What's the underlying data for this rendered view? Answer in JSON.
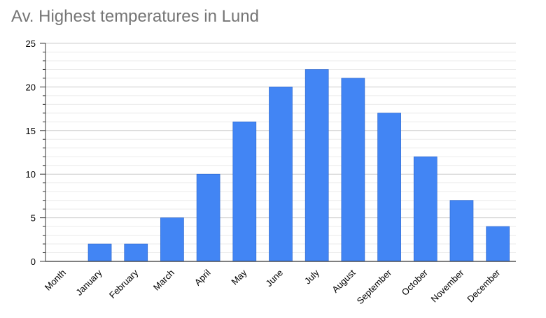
{
  "chart_data": {
    "type": "bar",
    "title": "Av. Highest temperatures in Lund",
    "xlabel": "",
    "ylabel": "",
    "categories": [
      "Month",
      "January",
      "February",
      "March",
      "April",
      "May",
      "June",
      "July",
      "August",
      "September",
      "October",
      "November",
      "December"
    ],
    "values": [
      null,
      2,
      2,
      5,
      10,
      16,
      20,
      22,
      21,
      17,
      12,
      7,
      4
    ],
    "ylim": [
      0,
      25
    ],
    "yticks": [
      0,
      5,
      10,
      15,
      20,
      25
    ],
    "grid": true,
    "legend": "none",
    "bar_color": "#4285f4",
    "major_grid_color": "#cccccc",
    "minor_grid_color": "#ebebeb",
    "axis_color": "#333333"
  }
}
